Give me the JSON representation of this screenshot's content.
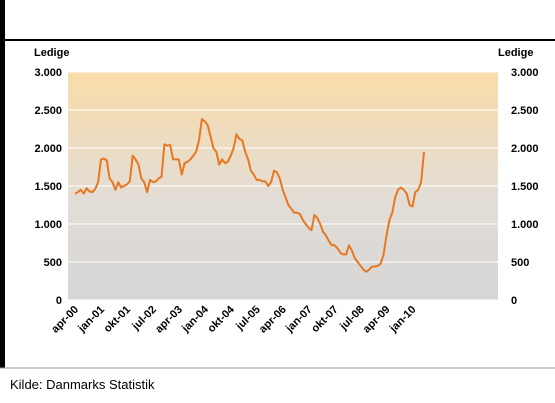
{
  "chart_data": {
    "type": "line",
    "y_label": "Ledige",
    "y2_label": "Ledige",
    "categories": [
      "apr-00",
      null,
      null,
      null,
      null,
      null,
      null,
      null,
      null,
      "jan-01",
      null,
      null,
      null,
      null,
      null,
      null,
      null,
      null,
      "okt-01",
      null,
      null,
      null,
      null,
      null,
      null,
      null,
      null,
      "jul-02",
      null,
      null,
      null,
      null,
      null,
      null,
      null,
      null,
      "apr-03",
      null,
      null,
      null,
      null,
      null,
      null,
      null,
      null,
      "jan-04",
      null,
      null,
      null,
      null,
      null,
      null,
      null,
      null,
      "okt-04",
      null,
      null,
      null,
      null,
      null,
      null,
      null,
      null,
      "jul-05",
      null,
      null,
      null,
      null,
      null,
      null,
      null,
      null,
      "apr-06",
      null,
      null,
      null,
      null,
      null,
      null,
      null,
      null,
      "jan-07",
      null,
      null,
      null,
      null,
      null,
      null,
      null,
      null,
      "okt-07",
      null,
      null,
      null,
      null,
      null,
      null,
      null,
      null,
      "jul-08",
      null,
      null,
      null,
      null,
      null,
      null,
      null,
      null,
      "apr-09",
      null,
      null,
      null,
      null,
      null,
      null,
      null,
      null,
      "jan-10",
      null,
      null,
      null,
      null
    ],
    "values": [
      1400,
      1420,
      1450,
      1400,
      1470,
      1430,
      1420,
      1460,
      1550,
      1850,
      1860,
      1840,
      1600,
      1550,
      1450,
      1550,
      1480,
      1500,
      1520,
      1560,
      1900,
      1850,
      1780,
      1600,
      1550,
      1420,
      1580,
      1550,
      1560,
      1600,
      1620,
      2050,
      2030,
      2040,
      1850,
      1850,
      1850,
      1650,
      1800,
      1820,
      1850,
      1900,
      1950,
      2100,
      2380,
      2350,
      2300,
      2150,
      2000,
      1950,
      1780,
      1850,
      1800,
      1820,
      1900,
      2000,
      2180,
      2120,
      2100,
      1950,
      1850,
      1700,
      1650,
      1580,
      1580,
      1560,
      1560,
      1500,
      1550,
      1700,
      1680,
      1600,
      1450,
      1350,
      1250,
      1200,
      1150,
      1150,
      1130,
      1050,
      1000,
      950,
      920,
      1120,
      1080,
      1000,
      900,
      850,
      780,
      720,
      720,
      680,
      620,
      600,
      600,
      720,
      650,
      550,
      500,
      450,
      400,
      370,
      400,
      440,
      440,
      450,
      480,
      600,
      850,
      1050,
      1150,
      1350,
      1450,
      1480,
      1450,
      1400,
      1250,
      1230,
      1420,
      1450,
      1550,
      1950
    ],
    "color": "#e87722",
    "ylim": [
      0,
      3000
    ],
    "yticks": [
      {
        "value": 0,
        "label": "0"
      },
      {
        "value": 500,
        "label": "500"
      },
      {
        "value": 1000,
        "label": "1.000"
      },
      {
        "value": 1500,
        "label": "1.500"
      },
      {
        "value": 2000,
        "label": "2.000"
      },
      {
        "value": 2500,
        "label": "2.500"
      },
      {
        "value": 3000,
        "label": "3.000"
      }
    ],
    "grid": true
  },
  "source": "Kilde: Danmarks Statistik"
}
